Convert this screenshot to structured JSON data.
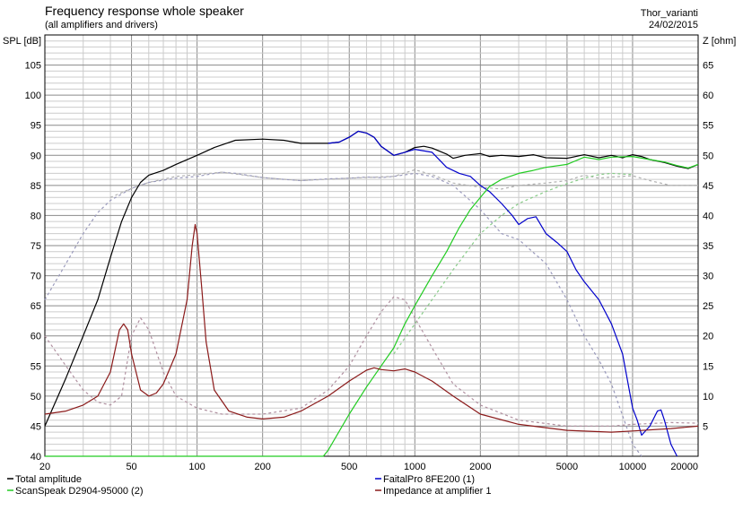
{
  "chart_data": {
    "type": "line",
    "title": "Frequency response whole speaker",
    "subtitle": "(all amplifiers and drivers)",
    "project": "Thor_varianti",
    "date": "24/02/2015",
    "x_scale": "log",
    "xlim": [
      20,
      20000
    ],
    "x_ticks": [
      {
        "v": 20,
        "label": "20"
      },
      {
        "v": 50,
        "label": "50"
      },
      {
        "v": 100,
        "label": "100"
      },
      {
        "v": 200,
        "label": "200"
      },
      {
        "v": 500,
        "label": "500"
      },
      {
        "v": 1000,
        "label": "1000"
      },
      {
        "v": 2000,
        "label": "2000"
      },
      {
        "v": 5000,
        "label": "5000"
      },
      {
        "v": 10000,
        "label": "10000"
      },
      {
        "v": 20000,
        "label": "20000"
      }
    ],
    "ylabel": "SPL [dB]",
    "ylim": [
      40,
      110
    ],
    "y_ticks": [
      40,
      45,
      50,
      55,
      60,
      65,
      70,
      75,
      80,
      85,
      90,
      95,
      100,
      105
    ],
    "y2label": "Z [ohm]",
    "y2lim": [
      0,
      70
    ],
    "y2_ticks": [
      5,
      10,
      15,
      20,
      25,
      30,
      35,
      40,
      45,
      50,
      55,
      60,
      65
    ],
    "grid": true,
    "legend_position": "bottom",
    "series": [
      {
        "name": "Total amplitude",
        "color": "#000000",
        "axis": "left",
        "style": "solid",
        "points": [
          [
            20,
            45
          ],
          [
            25,
            53
          ],
          [
            30,
            60
          ],
          [
            35,
            66
          ],
          [
            40,
            73
          ],
          [
            45,
            79
          ],
          [
            50,
            83
          ],
          [
            55,
            85.5
          ],
          [
            60,
            86.7
          ],
          [
            70,
            87.5
          ],
          [
            80,
            88.5
          ],
          [
            100,
            90
          ],
          [
            120,
            91.3
          ],
          [
            150,
            92.5
          ],
          [
            200,
            92.7
          ],
          [
            250,
            92.5
          ],
          [
            300,
            92
          ],
          [
            350,
            92
          ],
          [
            400,
            92
          ],
          [
            450,
            92.2
          ],
          [
            500,
            93
          ],
          [
            550,
            94
          ],
          [
            600,
            93.7
          ],
          [
            650,
            93
          ],
          [
            700,
            91.5
          ],
          [
            800,
            90
          ],
          [
            900,
            90.5
          ],
          [
            1000,
            91.3
          ],
          [
            1100,
            91.5
          ],
          [
            1200,
            91.2
          ],
          [
            1400,
            90.2
          ],
          [
            1500,
            89.5
          ],
          [
            1700,
            90
          ],
          [
            2000,
            90.3
          ],
          [
            2200,
            89.8
          ],
          [
            2500,
            90
          ],
          [
            3000,
            89.8
          ],
          [
            3500,
            90.1
          ],
          [
            4000,
            89.6
          ],
          [
            5000,
            89.5
          ],
          [
            6000,
            90.1
          ],
          [
            7000,
            89.6
          ],
          [
            8000,
            90
          ],
          [
            9000,
            89.6
          ],
          [
            10000,
            90.1
          ],
          [
            11000,
            89.8
          ],
          [
            12000,
            89.3
          ],
          [
            14000,
            88.8
          ],
          [
            16000,
            88.2
          ],
          [
            18000,
            87.8
          ],
          [
            20000,
            88.5
          ]
        ]
      },
      {
        "name": "FaitalPro 8FE200 (1)",
        "color": "#0000cc",
        "axis": "left",
        "style": "solid",
        "points": [
          [
            400,
            92
          ],
          [
            450,
            92.2
          ],
          [
            500,
            93
          ],
          [
            550,
            94
          ],
          [
            600,
            93.7
          ],
          [
            650,
            93
          ],
          [
            700,
            91.5
          ],
          [
            800,
            90
          ],
          [
            900,
            90.5
          ],
          [
            1000,
            91
          ],
          [
            1200,
            90.5
          ],
          [
            1400,
            88
          ],
          [
            1600,
            87
          ],
          [
            1800,
            86.5
          ],
          [
            2000,
            85
          ],
          [
            2200,
            84
          ],
          [
            2500,
            82
          ],
          [
            2800,
            80
          ],
          [
            3000,
            78.5
          ],
          [
            3300,
            79.5
          ],
          [
            3600,
            79.8
          ],
          [
            4000,
            77
          ],
          [
            4500,
            75.5
          ],
          [
            5000,
            74
          ],
          [
            5500,
            71
          ],
          [
            6000,
            69
          ],
          [
            7000,
            66
          ],
          [
            8000,
            62
          ],
          [
            9000,
            57
          ],
          [
            10000,
            48
          ],
          [
            10500,
            46
          ],
          [
            11000,
            43.5
          ],
          [
            12000,
            45
          ],
          [
            13000,
            47.5
          ],
          [
            13500,
            47.7
          ],
          [
            14000,
            46
          ],
          [
            15000,
            42
          ],
          [
            16000,
            40
          ]
        ]
      },
      {
        "name": "ScanSpeak D2904-95000 (2)",
        "color": "#22cc22",
        "axis": "left",
        "style": "solid",
        "points": [
          [
            20,
            40
          ],
          [
            300,
            40
          ],
          [
            380,
            40
          ],
          [
            400,
            41
          ],
          [
            500,
            47
          ],
          [
            600,
            51.5
          ],
          [
            700,
            55
          ],
          [
            800,
            58
          ],
          [
            900,
            62
          ],
          [
            1000,
            65
          ],
          [
            1200,
            70
          ],
          [
            1400,
            74
          ],
          [
            1600,
            78
          ],
          [
            1800,
            81
          ],
          [
            2000,
            83
          ],
          [
            2200,
            84.8
          ],
          [
            2500,
            86
          ],
          [
            3000,
            87
          ],
          [
            3500,
            87.5
          ],
          [
            4000,
            88
          ],
          [
            5000,
            88.5
          ],
          [
            6000,
            89.7
          ],
          [
            7000,
            89.3
          ],
          [
            8000,
            89.7
          ],
          [
            10000,
            89.8
          ],
          [
            12000,
            89.3
          ],
          [
            14000,
            88.9
          ],
          [
            16000,
            88.3
          ],
          [
            18000,
            87.9
          ],
          [
            20000,
            88.5
          ]
        ]
      },
      {
        "name": "Impedance at amplifier 1",
        "color": "#8b1a1a",
        "axis": "right",
        "style": "solid",
        "points": [
          [
            20,
            7
          ],
          [
            25,
            7.5
          ],
          [
            30,
            8.5
          ],
          [
            35,
            10
          ],
          [
            40,
            14
          ],
          [
            44,
            21
          ],
          [
            46,
            22
          ],
          [
            48,
            21
          ],
          [
            50,
            17
          ],
          [
            55,
            11
          ],
          [
            60,
            10
          ],
          [
            65,
            10.5
          ],
          [
            70,
            12
          ],
          [
            80,
            17
          ],
          [
            90,
            26
          ],
          [
            95,
            35
          ],
          [
            98,
            38.5
          ],
          [
            100,
            37
          ],
          [
            105,
            28
          ],
          [
            110,
            19
          ],
          [
            120,
            11
          ],
          [
            140,
            7.5
          ],
          [
            170,
            6.5
          ],
          [
            200,
            6.2
          ],
          [
            250,
            6.5
          ],
          [
            300,
            7.5
          ],
          [
            400,
            10
          ],
          [
            500,
            12.5
          ],
          [
            600,
            14.3
          ],
          [
            650,
            14.7
          ],
          [
            700,
            14.4
          ],
          [
            800,
            14.2
          ],
          [
            900,
            14.5
          ],
          [
            1000,
            14
          ],
          [
            1200,
            12.5
          ],
          [
            1500,
            10
          ],
          [
            2000,
            7
          ],
          [
            3000,
            5.3
          ],
          [
            5000,
            4.3
          ],
          [
            8000,
            4
          ],
          [
            10000,
            4.2
          ],
          [
            15000,
            4.6
          ],
          [
            20000,
            5
          ]
        ]
      },
      {
        "name": "",
        "color": "#9999bb",
        "axis": "right",
        "style": "dashed",
        "points": [
          [
            20,
            26
          ],
          [
            25,
            32
          ],
          [
            30,
            37
          ],
          [
            35,
            40.5
          ],
          [
            40,
            42.5
          ],
          [
            50,
            44.5
          ],
          [
            60,
            45.5
          ],
          [
            80,
            46.2
          ],
          [
            100,
            46.5
          ],
          [
            130,
            47.2
          ],
          [
            150,
            47
          ],
          [
            200,
            46.3
          ],
          [
            250,
            46
          ],
          [
            300,
            45.8
          ],
          [
            400,
            46.1
          ],
          [
            500,
            46.2
          ],
          [
            600,
            46.4
          ],
          [
            700,
            46.3
          ],
          [
            800,
            46.5
          ],
          [
            1000,
            47
          ],
          [
            1200,
            46.5
          ],
          [
            1500,
            45
          ],
          [
            2000,
            41
          ],
          [
            2500,
            37
          ],
          [
            3000,
            36
          ],
          [
            4000,
            32
          ],
          [
            5000,
            26
          ],
          [
            6000,
            20
          ],
          [
            7000,
            16
          ],
          [
            8000,
            12
          ],
          [
            10000,
            2
          ],
          [
            11000,
            0
          ]
        ]
      },
      {
        "name": "",
        "color": "#b0b0b0",
        "axis": "right",
        "style": "dashed",
        "points": [
          [
            40,
            43
          ],
          [
            50,
            44.5
          ],
          [
            60,
            45.5
          ],
          [
            80,
            46.5
          ],
          [
            100,
            46.8
          ],
          [
            130,
            47.2
          ],
          [
            200,
            46.3
          ],
          [
            300,
            45.8
          ],
          [
            500,
            46.2
          ],
          [
            800,
            46.5
          ],
          [
            1000,
            47.6
          ],
          [
            1200,
            46.8
          ],
          [
            1500,
            45.4
          ],
          [
            2000,
            44.7
          ],
          [
            2500,
            44.4
          ],
          [
            3000,
            45
          ],
          [
            4000,
            45.4
          ],
          [
            5000,
            45.8
          ],
          [
            6000,
            46.7
          ],
          [
            7000,
            46.2
          ],
          [
            8000,
            46.4
          ],
          [
            10000,
            46.6
          ],
          [
            12000,
            45.8
          ],
          [
            15000,
            45
          ],
          [
            20000,
            45
          ]
        ]
      },
      {
        "name": "",
        "color": "#88cc88",
        "axis": "right",
        "style": "dashed",
        "points": [
          [
            800,
            17
          ],
          [
            1000,
            22
          ],
          [
            1200,
            26
          ],
          [
            1500,
            31
          ],
          [
            2000,
            37
          ],
          [
            2500,
            40
          ],
          [
            3000,
            42
          ],
          [
            4000,
            44
          ],
          [
            5000,
            45.3
          ],
          [
            6000,
            46.2
          ],
          [
            7000,
            46.8
          ],
          [
            8000,
            47
          ],
          [
            10000,
            46.8
          ]
        ]
      },
      {
        "name": "",
        "color": "#b090a0",
        "axis": "right",
        "style": "dashed",
        "points": [
          [
            20,
            20
          ],
          [
            25,
            15
          ],
          [
            30,
            11
          ],
          [
            35,
            9
          ],
          [
            40,
            8.5
          ],
          [
            45,
            10
          ],
          [
            50,
            20
          ],
          [
            55,
            23
          ],
          [
            60,
            21
          ],
          [
            70,
            14
          ],
          [
            80,
            10
          ],
          [
            100,
            8
          ],
          [
            130,
            7
          ],
          [
            200,
            7
          ],
          [
            300,
            8
          ],
          [
            400,
            11
          ],
          [
            500,
            15
          ],
          [
            600,
            20
          ],
          [
            700,
            24
          ],
          [
            800,
            26.5
          ],
          [
            900,
            26
          ],
          [
            1000,
            23
          ],
          [
            1200,
            18
          ],
          [
            1500,
            12
          ],
          [
            2000,
            8.5
          ],
          [
            3000,
            6
          ],
          [
            5000,
            5
          ],
          [
            8000,
            5
          ],
          [
            10000,
            5.3
          ],
          [
            15000,
            5.6
          ],
          [
            20000,
            5.5
          ]
        ]
      }
    ]
  }
}
